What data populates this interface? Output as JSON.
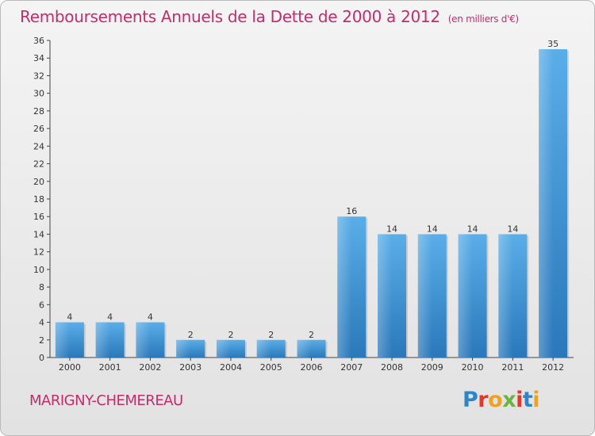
{
  "title": "Remboursements Annuels de la Dette de 2000 à 2012",
  "subtitle": "(en milliers d'€)",
  "commune": "MARIGNY-CHEMEREAU",
  "logo": {
    "text": "Proxiti",
    "letter_colors": [
      "#2e86c9",
      "#e2382b",
      "#f0a21e",
      "#6cb33f",
      "#e2382b",
      "#2e86c9",
      "#f0a21e"
    ]
  },
  "colors": {
    "accent": "#c22d6a",
    "bar_top": "#5aaee8",
    "bar_bottom": "#2a78ba"
  },
  "chart_data": {
    "type": "bar",
    "title": "Remboursements Annuels de la Dette de 2000 à 2012",
    "categories": [
      "2000",
      "2001",
      "2002",
      "2003",
      "2004",
      "2005",
      "2006",
      "2007",
      "2008",
      "2009",
      "2010",
      "2011",
      "2012"
    ],
    "values": [
      4,
      4,
      4,
      2,
      2,
      2,
      2,
      16,
      14,
      14,
      14,
      14,
      35
    ],
    "yticks": [
      0,
      2,
      4,
      6,
      8,
      10,
      12,
      14,
      16,
      18,
      20,
      22,
      24,
      26,
      28,
      30,
      32,
      34,
      36
    ],
    "ylim": [
      0,
      36
    ],
    "grid": false,
    "xlabel": "",
    "ylabel": ""
  }
}
